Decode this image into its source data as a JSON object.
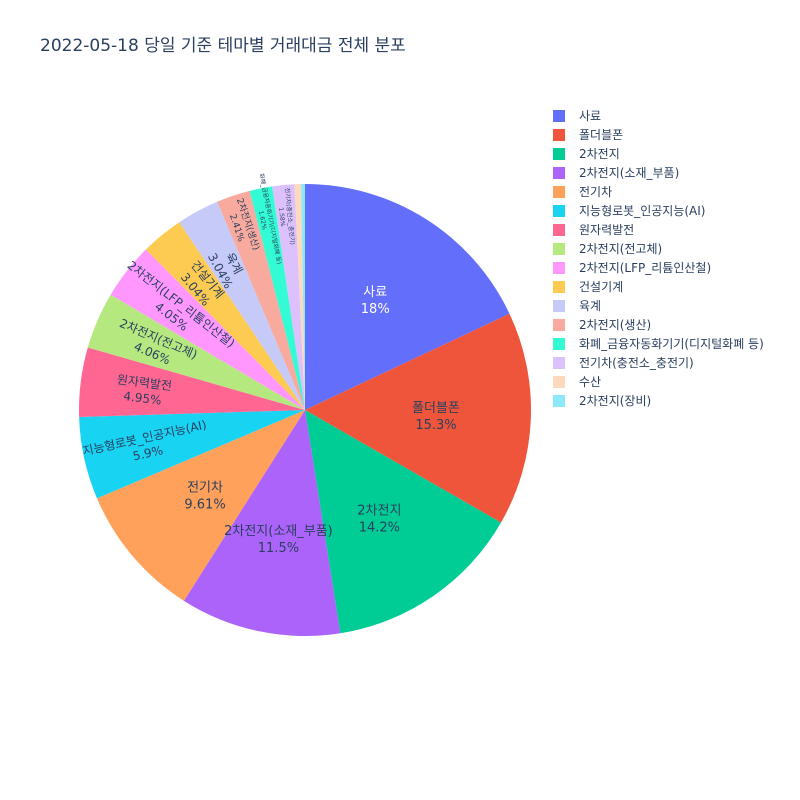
{
  "chart_data": {
    "type": "pie",
    "title": "2022-05-18 당일 기준 테마별 거래대금 전체 분포",
    "categories": [
      "사료",
      "폴더블폰",
      "2차전지",
      "2차전지(소재_부품)",
      "전기차",
      "지능형로봇_인공지능(AI)",
      "원자력발전",
      "2차전지(전고체)",
      "2차전지(LFP_리튬인산철)",
      "건설기계",
      "육계",
      "2차전지(생산)",
      "화폐_금융자동화기기(디지털화폐 등)",
      "전기차(충전소_충전기)",
      "수산",
      "2차전지(장비)"
    ],
    "values": [
      18.0,
      15.3,
      14.2,
      11.5,
      9.61,
      5.9,
      4.95,
      4.06,
      4.05,
      3.04,
      3.04,
      2.41,
      1.62,
      1.58,
      0.46,
      0.28
    ],
    "data_labels": [
      "18%",
      "15.3%",
      "14.2%",
      "11.5%",
      "9.61%",
      "5.9%",
      "4.95%",
      "4.06%",
      "4.05%",
      "3.04%",
      "3.04%",
      "2.41%",
      "1.62%",
      "1.58%",
      "",
      ""
    ],
    "legend_position": "right",
    "colors": [
      "#636efa",
      "#EF553B",
      "#00cc96",
      "#ab63fa",
      "#FFA15A",
      "#19d3f3",
      "#FF6692",
      "#B6E880",
      "#FF97FF",
      "#FECB52",
      "#c5caf9",
      "#f7aa9d",
      "#33fbd3",
      "#ddc1fd",
      "#ffd9bd",
      "#8ce9f8"
    ],
    "text_colors": [
      "#ffffff",
      "#2a3f5f",
      "#2a3f5f",
      "#2a3f5f",
      "#2a3f5f",
      "#2a3f5f",
      "#2a3f5f",
      "#2a3f5f",
      "#2a3f5f",
      "#2a3f5f",
      "#2a3f5f",
      "#2a3f5f",
      "#2a3f5f",
      "#2a3f5f",
      "#2a3f5f",
      "#2a3f5f"
    ]
  }
}
